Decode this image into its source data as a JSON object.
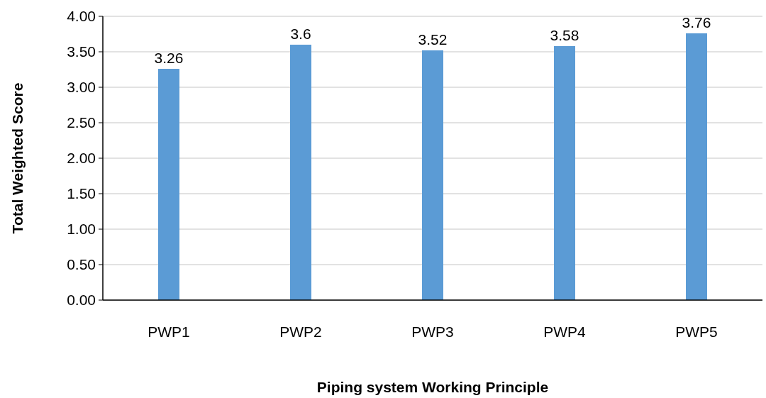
{
  "chart_data": {
    "type": "bar",
    "xlabel": "Piping system Working Principle",
    "ylabel": "Total Weighted Score",
    "categories": [
      "PWP1",
      "PWP2",
      "PWP3",
      "PWP4",
      "PWP5"
    ],
    "values": [
      3.26,
      3.6,
      3.52,
      3.58,
      3.76
    ],
    "color": "#5b9bd5",
    "ylim": [
      0,
      4
    ],
    "yticks": [
      {
        "value": 0,
        "label": "0.00"
      },
      {
        "value": 0.5,
        "label": "0.50"
      },
      {
        "value": 1,
        "label": "1.00"
      },
      {
        "value": 1.5,
        "label": "1.50"
      },
      {
        "value": 2,
        "label": "2.00"
      },
      {
        "value": 2.5,
        "label": "2.50"
      },
      {
        "value": 3,
        "label": "3.00"
      },
      {
        "value": 3.5,
        "label": "3.50"
      },
      {
        "value": 4,
        "label": "4.00"
      }
    ],
    "grid": "y",
    "data_labels": true
  }
}
